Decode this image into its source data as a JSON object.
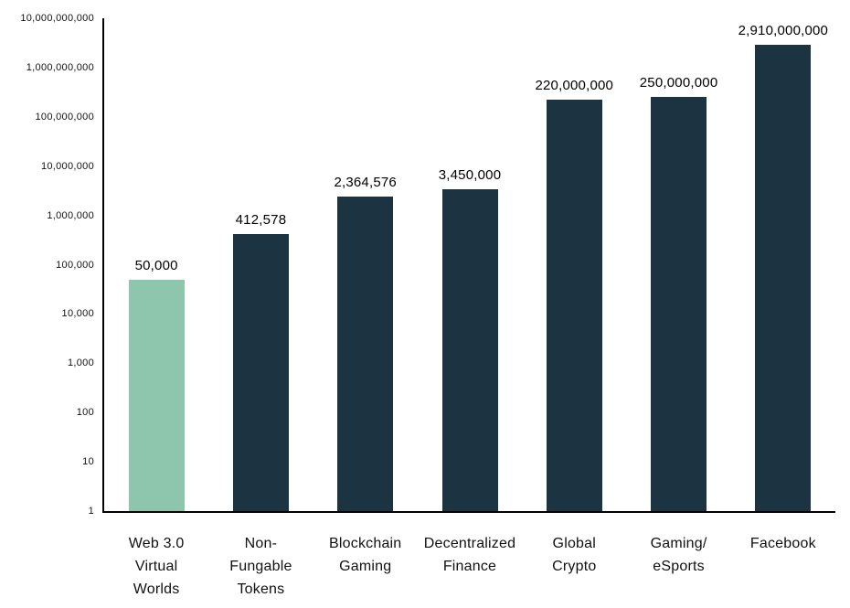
{
  "chart_data": {
    "type": "bar",
    "scale": "log",
    "title": "",
    "xlabel": "",
    "ylabel": "",
    "grid": false,
    "legend": null,
    "categories": [
      "Web 3.0\nVirtual\nWorlds",
      "Non-\nFungable\nTokens",
      "Blockchain\nGaming",
      "Decentralized\nFinance",
      "Global\nCrypto",
      "Gaming/\neSports",
      "Facebook"
    ],
    "values": [
      50000,
      412578,
      2364576,
      3450000,
      220000000,
      250000000,
      2910000000
    ],
    "value_labels": [
      "50,000",
      "412,578",
      "2,364,576",
      "3,450,000",
      "220,000,000",
      "250,000,000",
      "2,910,000,000"
    ],
    "ylim": [
      1,
      10000000000
    ],
    "yticks": [
      1,
      10,
      100,
      1000,
      10000,
      100000,
      1000000,
      10000000,
      100000000,
      1000000000,
      10000000000
    ],
    "ytick_labels": [
      "1",
      "10",
      "100",
      "1,000",
      "10,000",
      "100,000",
      "1,000,000",
      "10,000,000",
      "100,000,000",
      "1,000,000,000",
      "10,000,000,000"
    ],
    "bar_colors": [
      "#8EC6AD",
      "#1C3342",
      "#1C3342",
      "#1C3342",
      "#1C3342",
      "#1C3342",
      "#1C3342"
    ],
    "highlight_color": "#8EC6AD",
    "default_color": "#1C3342",
    "axis_color": "#000000",
    "text_color": "#111111"
  }
}
